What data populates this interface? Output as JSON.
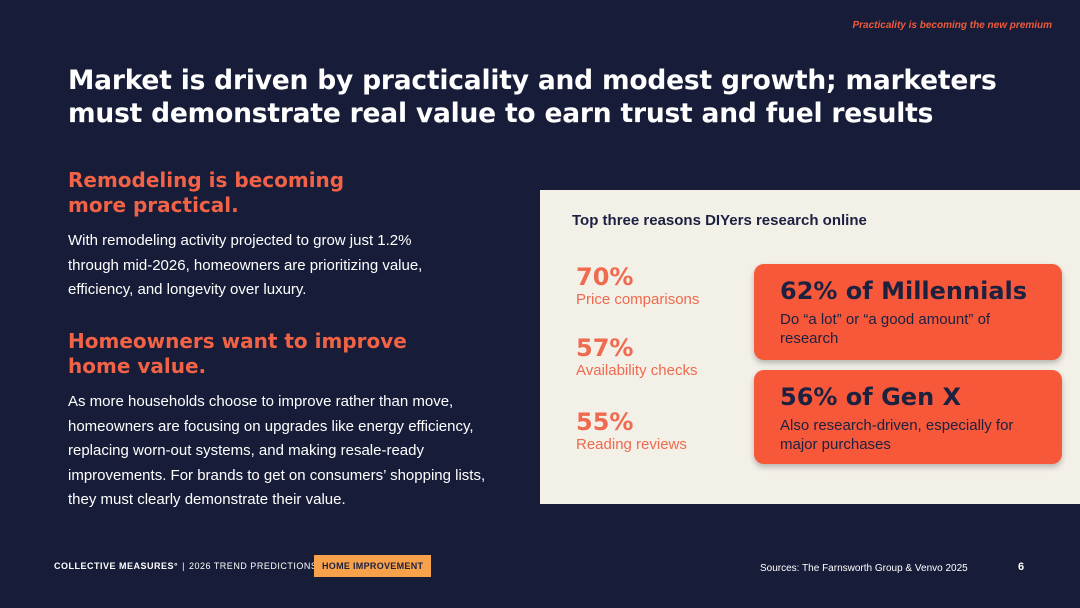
{
  "tagline": "Practicality is becoming the new premium",
  "headline": "Market is driven by practicality and modest growth; marketers must demonstrate real value to earn trust and fuel results",
  "sections": [
    {
      "heading": "Remodeling is becoming more practical.",
      "body": "With remodeling activity projected to grow just 1.2% through mid-2026, homeowners are prioritizing value, efficiency, and longevity over luxury."
    },
    {
      "heading": "Homeowners want to improve home value.",
      "body": "As more households choose to improve rather than move, homeowners are focusing on upgrades like energy efficiency, replacing worn-out systems, and making resale-ready improvements. For brands to get on consumers’ shopping lists, they must clearly demonstrate their value."
    }
  ],
  "panel": {
    "title": "Top three reasons DIYers research online",
    "stats": [
      {
        "pct": "70%",
        "label": "Price comparisons"
      },
      {
        "pct": "57%",
        "label": "Availability checks"
      },
      {
        "pct": "55%",
        "label": "Reading reviews"
      }
    ],
    "cards": [
      {
        "title": "62% of Millennials",
        "sub": "Do “a lot” or “a good amount” of research"
      },
      {
        "title": "56% of Gen X",
        "sub": "Also research-driven, especially for major purchases"
      }
    ]
  },
  "footer": {
    "brand": "COLLECTIVE MEASURES°",
    "separator": "|",
    "series": "2026 TREND PREDICTIONS",
    "category_tag": "HOME IMPROVEMENT",
    "source": "Sources: The Farnsworth Group & Venvo 2025",
    "page_number": "6"
  },
  "colors": {
    "background": "#171d38",
    "accent": "#f26246",
    "card": "#f7583a",
    "panel": "#f3f0e8",
    "tag": "#f7a14a"
  }
}
